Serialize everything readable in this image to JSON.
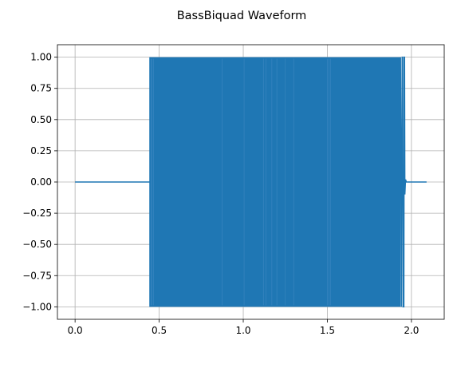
{
  "chart_data": {
    "type": "line",
    "title": "BassBiquad Waveform",
    "xlabel": "",
    "ylabel": "",
    "xlim": [
      -0.105,
      2.195
    ],
    "ylim": [
      -1.1,
      1.1
    ],
    "xticks": [
      0.0,
      0.5,
      1.0,
      1.5,
      2.0
    ],
    "xtick_labels": [
      "0.0",
      "0.5",
      "1.0",
      "1.5",
      "2.0"
    ],
    "yticks": [
      1.0,
      0.75,
      0.5,
      0.25,
      0.0,
      -0.25,
      -0.5,
      -0.75,
      -1.0
    ],
    "ytick_labels": [
      "1.00",
      "0.75",
      "0.50",
      "0.25",
      "0.00",
      "−0.25",
      "−0.50",
      "−0.75",
      "−1.00"
    ],
    "grid": true,
    "series": [
      {
        "color": "#1f77b4",
        "segments": [
          {
            "kind": "flat",
            "x_start": 0.0,
            "x_end": 0.445,
            "y": 0.0
          },
          {
            "kind": "square-oscillation",
            "x_start": 0.445,
            "x_end": 1.935,
            "y_min": -1.0,
            "y_max": 1.0
          },
          {
            "kind": "decay-tail",
            "x_start": 1.935,
            "x_end": 1.975,
            "y_min": -1.0,
            "y_max": 1.0
          },
          {
            "kind": "flat",
            "x_start": 1.975,
            "x_end": 2.09,
            "y": 0.0
          }
        ]
      }
    ]
  }
}
